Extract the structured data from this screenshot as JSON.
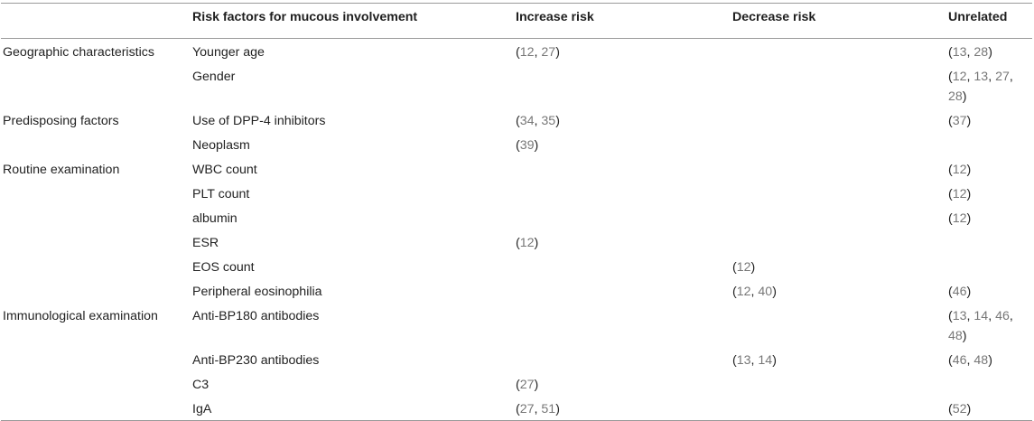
{
  "header": {
    "col0": "",
    "col1": "Risk factors for mucous involvement",
    "col2": "Increase risk",
    "col3": "Decrease risk",
    "col4": "Unrelated"
  },
  "groups": [
    {
      "label": "Geographic characteristics",
      "rows": 2
    },
    {
      "label": "Predisposing factors",
      "rows": 2
    },
    {
      "label": "Routine examination",
      "rows": 6
    },
    {
      "label": "Immunological examination",
      "rows": 4
    }
  ],
  "rows": [
    {
      "factor": "Younger age",
      "increase": [
        "12",
        "27"
      ],
      "decrease": [],
      "unrelated": [
        "13",
        "28"
      ]
    },
    {
      "factor": "Gender",
      "increase": [],
      "decrease": [],
      "unrelated": [
        "12",
        "13",
        "27",
        "28"
      ]
    },
    {
      "factor": "Use of DPP-4 inhibitors",
      "increase": [
        "34",
        "35"
      ],
      "decrease": [],
      "unrelated": [
        "37"
      ]
    },
    {
      "factor": "Neoplasm",
      "increase": [
        "39"
      ],
      "decrease": [],
      "unrelated": []
    },
    {
      "factor": "WBC count",
      "increase": [],
      "decrease": [],
      "unrelated": [
        "12"
      ]
    },
    {
      "factor": "PLT count",
      "increase": [],
      "decrease": [],
      "unrelated": [
        "12"
      ]
    },
    {
      "factor": "albumin",
      "increase": [],
      "decrease": [],
      "unrelated": [
        "12"
      ]
    },
    {
      "factor": "ESR",
      "increase": [
        "12"
      ],
      "decrease": [],
      "unrelated": []
    },
    {
      "factor": "EOS count",
      "increase": [],
      "decrease": [
        "12"
      ],
      "unrelated": []
    },
    {
      "factor": "Peripheral eosinophilia",
      "increase": [],
      "decrease": [
        "12",
        "40"
      ],
      "unrelated": [
        "46"
      ]
    },
    {
      "factor": "Anti-BP180 antibodies",
      "increase": [],
      "decrease": [],
      "unrelated": [
        "13",
        "14",
        "46",
        "48"
      ]
    },
    {
      "factor": "Anti-BP230 antibodies",
      "increase": [],
      "decrease": [
        "13",
        "14"
      ],
      "unrelated": [
        "46",
        "48"
      ]
    },
    {
      "factor": "C3",
      "increase": [
        "27"
      ],
      "decrease": [],
      "unrelated": []
    },
    {
      "factor": "IgA",
      "increase": [
        "27",
        "51"
      ],
      "decrease": [],
      "unrelated": [
        "52"
      ]
    }
  ]
}
